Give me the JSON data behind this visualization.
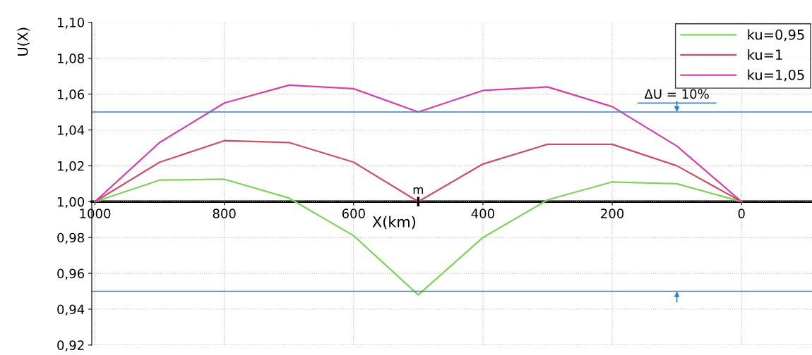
{
  "chart_data": {
    "type": "line",
    "xlabel": "X(km)",
    "ylabel": "U(X)",
    "x": [
      1000,
      900,
      800,
      700,
      600,
      500,
      400,
      300,
      200,
      100,
      0
    ],
    "series": [
      {
        "name": "ku=0,95",
        "color": "#7fd35a",
        "values": [
          1.0,
          1.012,
          1.0125,
          1.002,
          0.981,
          0.948,
          0.98,
          1.001,
          1.011,
          1.01,
          1.0
        ]
      },
      {
        "name": "ku=1",
        "color": "#cf4f62",
        "values": [
          1.0,
          1.022,
          1.034,
          1.033,
          1.022,
          1.0,
          1.021,
          1.032,
          1.032,
          1.02,
          1.0
        ]
      },
      {
        "name": "ku=1,05",
        "color": "#d93ea8",
        "values": [
          1.0,
          1.033,
          1.055,
          1.065,
          1.063,
          1.05,
          1.062,
          1.064,
          1.053,
          1.031,
          1.0
        ]
      }
    ],
    "xlim": [
      1005,
      -109
    ],
    "ylim": [
      0.92,
      1.1
    ],
    "xticks": [
      1000,
      800,
      600,
      400,
      200,
      0
    ],
    "yticks": [
      {
        "value": 0.92,
        "label": "0,92"
      },
      {
        "value": 0.94,
        "label": "0,94"
      },
      {
        "value": 0.96,
        "label": "0,96"
      },
      {
        "value": 0.98,
        "label": "0,98"
      },
      {
        "value": 1.0,
        "label": "1,00"
      },
      {
        "value": 1.02,
        "label": "1,02"
      },
      {
        "value": 1.04,
        "label": "1,04"
      },
      {
        "value": 1.06,
        "label": "1,06"
      },
      {
        "value": 1.08,
        "label": "1,08"
      },
      {
        "value": 1.1,
        "label": "1,10"
      }
    ],
    "ref_lines": [
      {
        "axis": "y",
        "value": 1.05,
        "color": "#3a7fc4"
      },
      {
        "axis": "y",
        "value": 0.95,
        "color": "#3a7fc4"
      }
    ],
    "annotations": [
      {
        "text": "m",
        "x": 500,
        "y": 1.0
      },
      {
        "text": "ΔU = 10%",
        "x": 100,
        "y": 1.05
      }
    ],
    "grid": true,
    "legend": "top right",
    "marker": "none",
    "line_style": "solid"
  }
}
